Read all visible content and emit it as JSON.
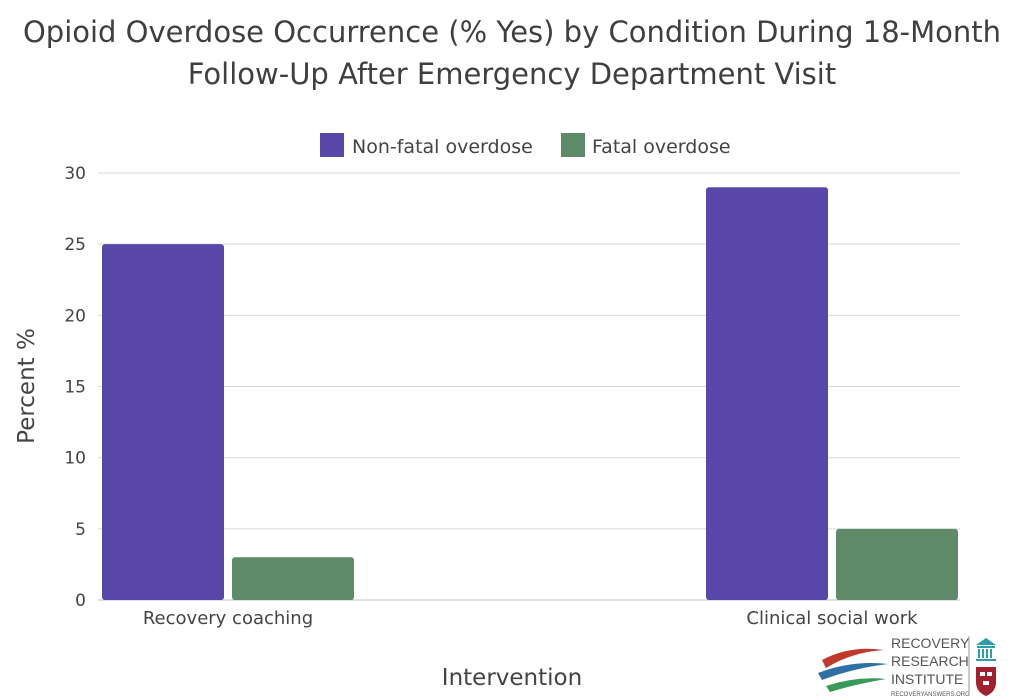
{
  "chart_data": {
    "type": "bar",
    "title_lines": [
      "Opioid Overdose Occurrence (% Yes) by Condition During 18-Month",
      "Follow-Up After Emergency Department Visit"
    ],
    "xlabel": "Intervention",
    "ylabel": "Percent %",
    "categories": [
      "Recovery coaching",
      "Clinical social work"
    ],
    "series": [
      {
        "name": "Non-fatal overdose",
        "values": [
          25,
          29
        ],
        "color": "#5846a8"
      },
      {
        "name": "Fatal overdose",
        "values": [
          3,
          5
        ],
        "color": "#5e8a6a"
      }
    ],
    "ylim": [
      0,
      30
    ],
    "yticks": [
      0,
      5,
      10,
      15,
      20,
      25,
      30
    ],
    "grid": true,
    "legend_position": "top-center"
  },
  "logo": {
    "lines": [
      "RECOVERY",
      "RESEARCH",
      "INSTITUTE"
    ],
    "url": "RECOVERYANSWERS.ORG",
    "colors": {
      "red": "#c0392b",
      "blue": "#2f6fa6",
      "green": "#3a9a5b",
      "teal": "#2a9da8",
      "crimson": "#a3202e"
    }
  }
}
